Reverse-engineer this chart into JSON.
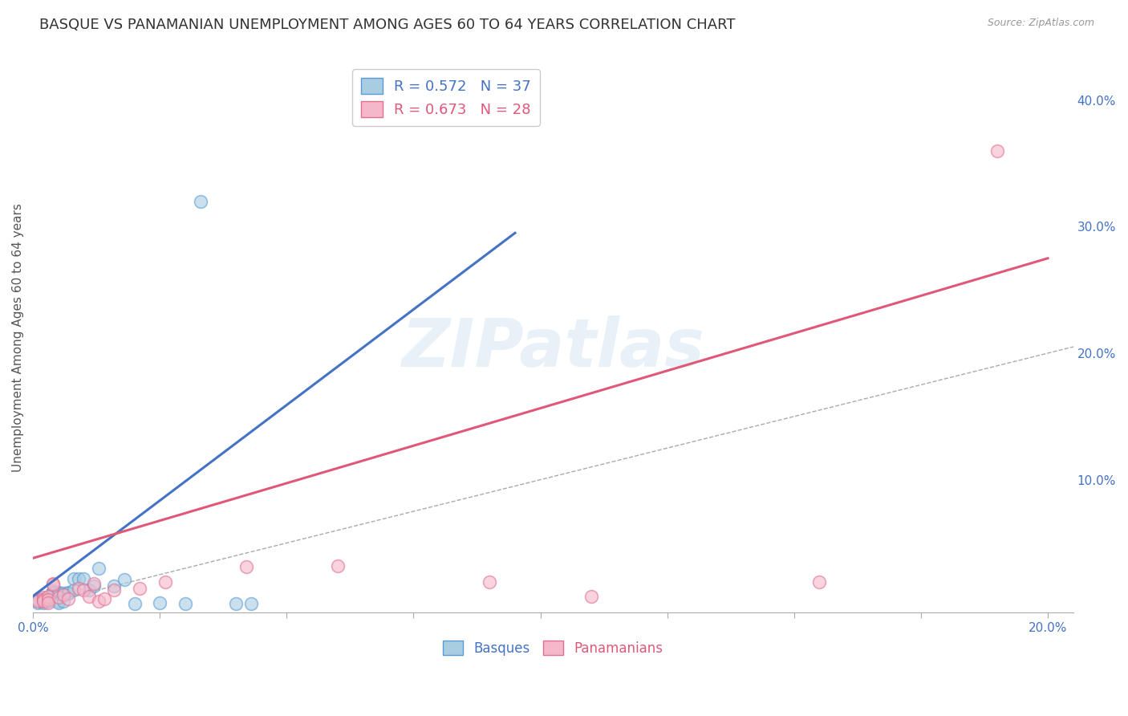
{
  "title": "BASQUE VS PANAMANIAN UNEMPLOYMENT AMONG AGES 60 TO 64 YEARS CORRELATION CHART",
  "source": "Source: ZipAtlas.com",
  "ylabel": "Unemployment Among Ages 60 to 64 years",
  "watermark": "ZIPatlas",
  "xlim": [
    0.0,
    0.205
  ],
  "ylim": [
    -0.005,
    0.43
  ],
  "xtick_positions": [
    0.0,
    0.025,
    0.05,
    0.075,
    0.1,
    0.125,
    0.15,
    0.175,
    0.2
  ],
  "xtick_labels_show": {
    "0.0": "0.0%",
    "0.20": "20.0%"
  },
  "yticks_right": [
    0.1,
    0.2,
    0.3,
    0.4
  ],
  "legend_blue_r": "R = 0.572",
  "legend_blue_n": "N = 37",
  "legend_pink_r": "R = 0.673",
  "legend_pink_n": "N = 28",
  "blue_color": "#a8cce0",
  "pink_color": "#f5b8cb",
  "blue_edge_color": "#5b9bd5",
  "pink_edge_color": "#e07090",
  "blue_line_color": "#4472c4",
  "pink_line_color": "#e05878",
  "blue_scatter": [
    [
      0.001,
      0.005
    ],
    [
      0.001,
      0.004
    ],
    [
      0.001,
      0.003
    ],
    [
      0.002,
      0.006
    ],
    [
      0.002,
      0.005
    ],
    [
      0.002,
      0.004
    ],
    [
      0.002,
      0.003
    ],
    [
      0.003,
      0.007
    ],
    [
      0.003,
      0.006
    ],
    [
      0.003,
      0.005
    ],
    [
      0.003,
      0.004
    ],
    [
      0.004,
      0.012
    ],
    [
      0.004,
      0.011
    ],
    [
      0.004,
      0.01
    ],
    [
      0.005,
      0.011
    ],
    [
      0.005,
      0.01
    ],
    [
      0.005,
      0.004
    ],
    [
      0.005,
      0.003
    ],
    [
      0.006,
      0.01
    ],
    [
      0.006,
      0.004
    ],
    [
      0.007,
      0.011
    ],
    [
      0.007,
      0.01
    ],
    [
      0.008,
      0.013
    ],
    [
      0.008,
      0.022
    ],
    [
      0.009,
      0.022
    ],
    [
      0.01,
      0.022
    ],
    [
      0.011,
      0.013
    ],
    [
      0.012,
      0.016
    ],
    [
      0.013,
      0.03
    ],
    [
      0.016,
      0.016
    ],
    [
      0.018,
      0.021
    ],
    [
      0.02,
      0.002
    ],
    [
      0.025,
      0.003
    ],
    [
      0.03,
      0.002
    ],
    [
      0.033,
      0.32
    ],
    [
      0.04,
      0.002
    ],
    [
      0.043,
      0.002
    ]
  ],
  "pink_scatter": [
    [
      0.001,
      0.005
    ],
    [
      0.001,
      0.004
    ],
    [
      0.002,
      0.007
    ],
    [
      0.002,
      0.005
    ],
    [
      0.002,
      0.004
    ],
    [
      0.003,
      0.008
    ],
    [
      0.003,
      0.005
    ],
    [
      0.003,
      0.003
    ],
    [
      0.004,
      0.018
    ],
    [
      0.004,
      0.017
    ],
    [
      0.005,
      0.007
    ],
    [
      0.006,
      0.009
    ],
    [
      0.007,
      0.006
    ],
    [
      0.009,
      0.014
    ],
    [
      0.01,
      0.013
    ],
    [
      0.011,
      0.008
    ],
    [
      0.012,
      0.018
    ],
    [
      0.013,
      0.004
    ],
    [
      0.014,
      0.006
    ],
    [
      0.016,
      0.013
    ],
    [
      0.021,
      0.014
    ],
    [
      0.026,
      0.019
    ],
    [
      0.042,
      0.031
    ],
    [
      0.06,
      0.032
    ],
    [
      0.09,
      0.019
    ],
    [
      0.11,
      0.008
    ],
    [
      0.155,
      0.019
    ],
    [
      0.19,
      0.36
    ]
  ],
  "blue_trend_x": [
    0.0,
    0.095
  ],
  "blue_trend_y": [
    0.008,
    0.295
  ],
  "pink_trend_x": [
    0.0,
    0.2
  ],
  "pink_trend_y": [
    0.038,
    0.275
  ],
  "ref_line_x": [
    0.0,
    0.4
  ],
  "ref_line_y": [
    0.0,
    0.4
  ],
  "grid_color": "#cccccc",
  "title_fontsize": 13,
  "label_fontsize": 11,
  "tick_fontsize": 11,
  "axis_label_color": "#4472c4",
  "ylabel_color": "#555555"
}
